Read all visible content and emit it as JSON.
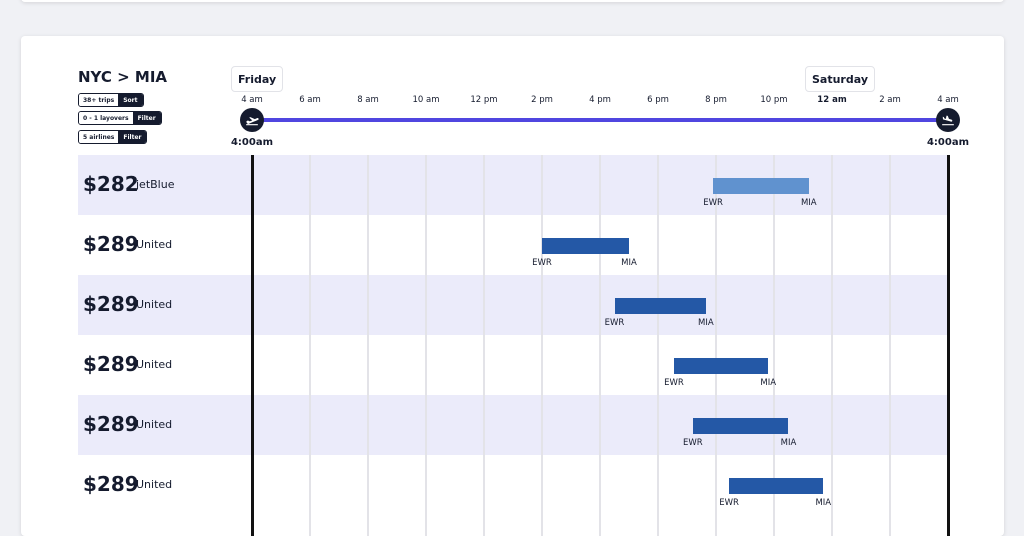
{
  "route": {
    "title": "NYC > MIA"
  },
  "filters": [
    {
      "label": "38+ trips",
      "action": "Sort"
    },
    {
      "label": "0 - 1 layovers",
      "action": "Filter"
    },
    {
      "label": "5 airlines",
      "action": "Filter"
    }
  ],
  "timeline": {
    "day_start": "Friday",
    "day_end": "Saturday",
    "ticks": [
      "4 am",
      "6 am",
      "8 am",
      "10 am",
      "12 pm",
      "2 pm",
      "4 pm",
      "6 pm",
      "8 pm",
      "10 pm",
      "12 am",
      "2 am",
      "4 am"
    ],
    "bold_tick_index": 10,
    "start_time": "4:00am",
    "end_time": "4:00am",
    "bar_color": "#5046e0",
    "icons": [
      "takeoff-icon",
      "landing-icon"
    ]
  },
  "flights": [
    {
      "price": "$282",
      "airline": "jetBlue",
      "from": "EWR",
      "to": "MIA",
      "depart_hour": 15.9,
      "arrive_hour": 19.2,
      "color": "#6092cf"
    },
    {
      "price": "$289",
      "airline": "United",
      "from": "EWR",
      "to": "MIA",
      "depart_hour": 10.0,
      "arrive_hour": 13.0,
      "color": "#2458a6"
    },
    {
      "price": "$289",
      "airline": "United",
      "from": "EWR",
      "to": "MIA",
      "depart_hour": 12.5,
      "arrive_hour": 15.65,
      "color": "#2458a6"
    },
    {
      "price": "$289",
      "airline": "United",
      "from": "EWR",
      "to": "MIA",
      "depart_hour": 14.55,
      "arrive_hour": 17.8,
      "color": "#2458a6"
    },
    {
      "price": "$289",
      "airline": "United",
      "from": "EWR",
      "to": "MIA",
      "depart_hour": 15.2,
      "arrive_hour": 18.5,
      "color": "#2458a6"
    },
    {
      "price": "$289",
      "airline": "United",
      "from": "EWR",
      "to": "MIA",
      "depart_hour": 16.45,
      "arrive_hour": 19.7,
      "color": "#2458a6"
    }
  ]
}
